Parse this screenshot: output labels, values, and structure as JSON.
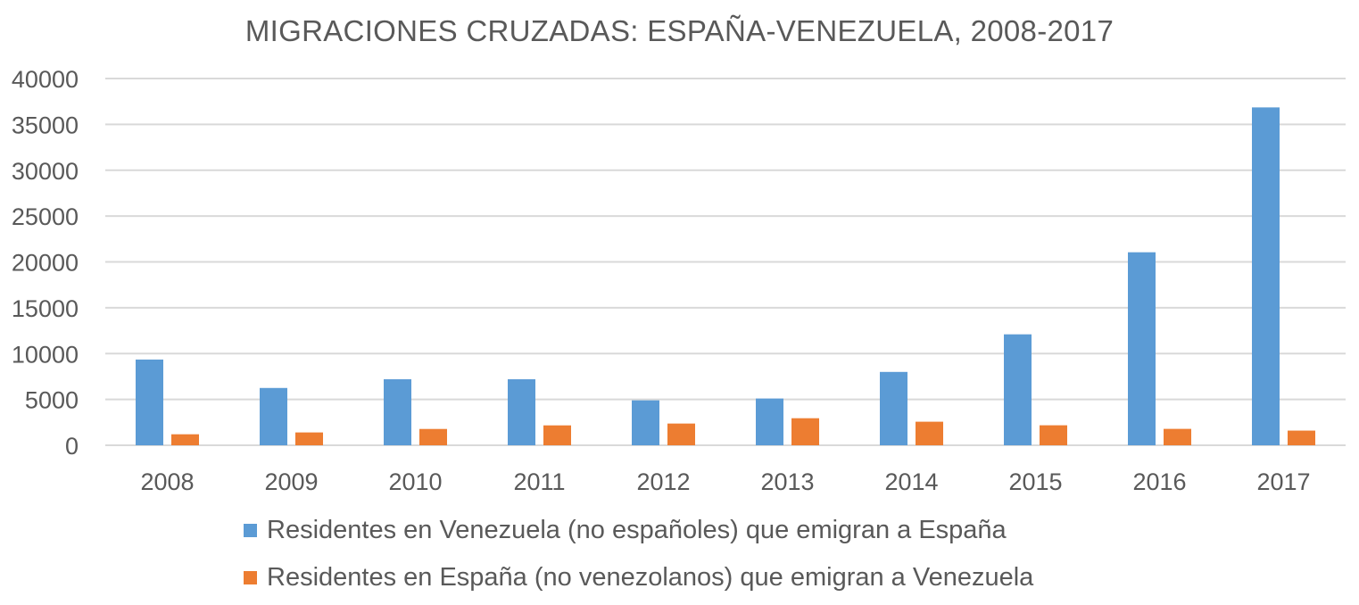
{
  "chart_data": {
    "type": "bar",
    "title": "MIGRACIONES CRUZADAS: ESPAÑA-VENEZUELA, 2008-2017",
    "xlabel": "",
    "ylabel": "",
    "ylim": [
      0,
      40000
    ],
    "yticks": [
      "0",
      "5000",
      "10000",
      "15000",
      "20000",
      "25000",
      "30000",
      "35000",
      "40000"
    ],
    "grid": true,
    "legend_position": "bottom",
    "categories": [
      "2008",
      "2009",
      "2010",
      "2011",
      "2012",
      "2013",
      "2014",
      "2015",
      "2016",
      "2017"
    ],
    "series": [
      {
        "name": "Residentes en Venezuela (no españoles) que emigran a España",
        "color": "#5B9BD5",
        "values": [
          9350,
          6250,
          7200,
          7200,
          4900,
          5100,
          8000,
          12100,
          21050,
          36850
        ]
      },
      {
        "name": "Residentes en España (no venezolanos) que emigran a Venezuela",
        "color": "#ED7D31",
        "values": [
          1200,
          1400,
          1780,
          2170,
          2370,
          2950,
          2570,
          2180,
          1790,
          1600
        ]
      }
    ]
  }
}
